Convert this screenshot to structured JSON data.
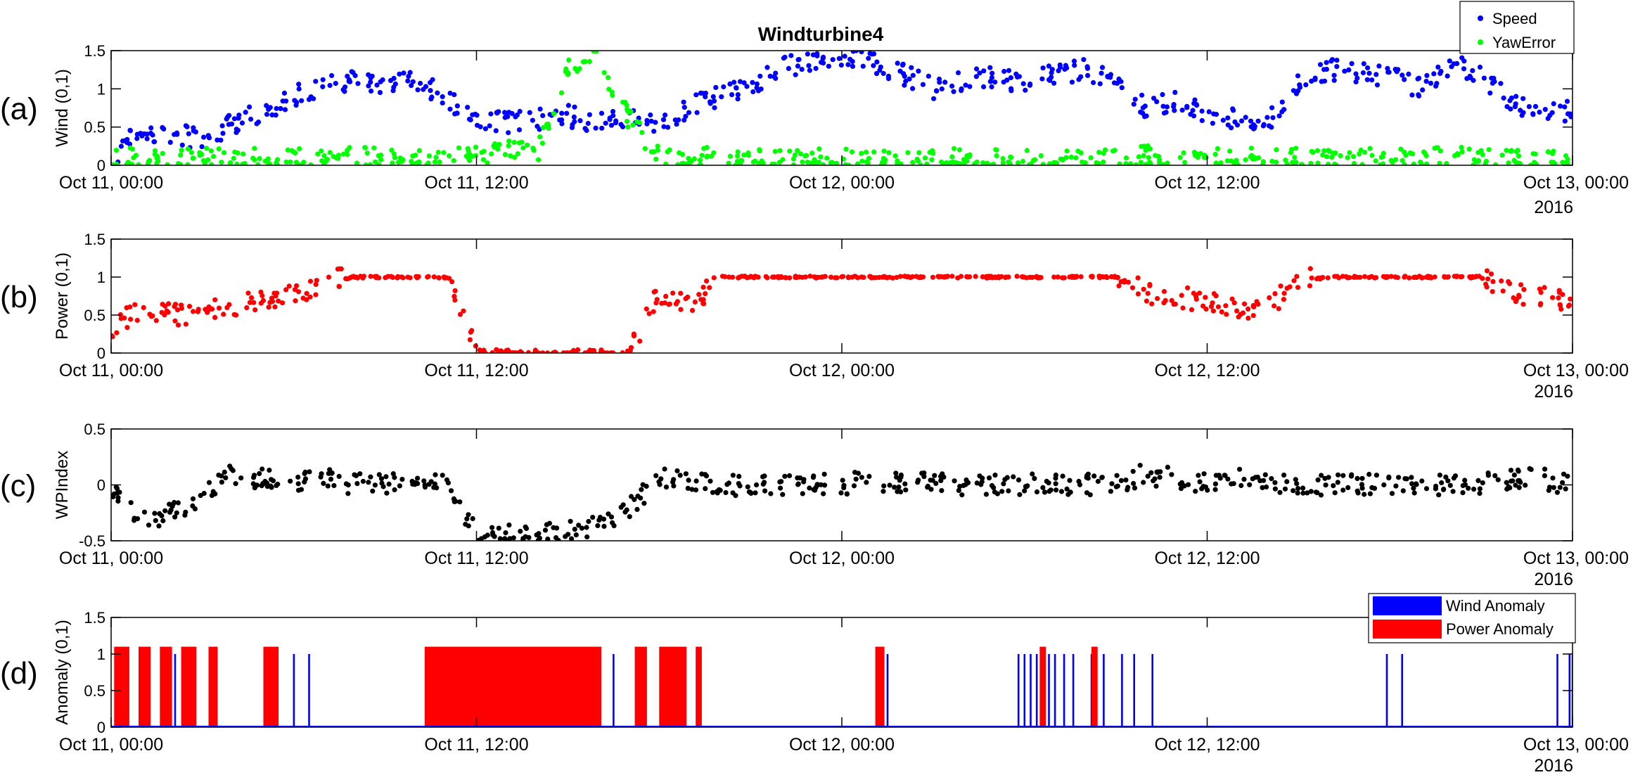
{
  "figure": {
    "panel_letters": [
      "(a)",
      "(b)",
      "(c)",
      "(d)"
    ],
    "year_label": "2016"
  },
  "chart_data": [
    {
      "type": "scatter",
      "panel": "(a)",
      "title": "Windturbine4",
      "ylabel": "Wind (0,1)",
      "ylim": [
        0,
        1.5
      ],
      "y_ticks": [
        "0",
        "0.5",
        "1",
        "1.5"
      ],
      "x_ticks": [
        "Oct 11, 00:00",
        "Oct 11, 12:00",
        "Oct 12, 00:00",
        "Oct 12, 12:00",
        "Oct 13, 00:00"
      ],
      "xlim_hours": [
        0,
        48
      ],
      "grid": false,
      "legend_position": "top-right",
      "series": [
        {
          "name": "Speed",
          "color": "#0000ff",
          "x": [
            0,
            1,
            2,
            3,
            4,
            5,
            6,
            7,
            8,
            9,
            10,
            11,
            12,
            13,
            14,
            15,
            16,
            17,
            18,
            19,
            20,
            21,
            22,
            23,
            24,
            25,
            26,
            27,
            28,
            29,
            30,
            31,
            32,
            33,
            34,
            35,
            36,
            37,
            38,
            39,
            40,
            41,
            42,
            43,
            44,
            45,
            46,
            47,
            48
          ],
          "y": [
            0.1,
            0.45,
            0.4,
            0.35,
            0.55,
            0.7,
            0.9,
            1.05,
            1.1,
            1.0,
            1.15,
            0.85,
            0.6,
            0.55,
            0.6,
            0.65,
            0.55,
            0.6,
            0.5,
            0.75,
            0.9,
            1.0,
            1.3,
            1.35,
            1.4,
            1.35,
            1.2,
            1.0,
            1.1,
            1.15,
            1.05,
            1.2,
            1.25,
            1.15,
            0.75,
            0.85,
            0.7,
            0.6,
            0.55,
            1.1,
            1.25,
            1.2,
            1.15,
            1.0,
            1.3,
            1.2,
            0.8,
            0.75,
            0.7
          ]
        },
        {
          "name": "YawError",
          "color": "#00ff00",
          "x": [
            0,
            1,
            2,
            3,
            4,
            5,
            6,
            7,
            8,
            9,
            10,
            11,
            12,
            13,
            14,
            15,
            16,
            17,
            18,
            19,
            20,
            21,
            22,
            23,
            24,
            25,
            26,
            27,
            28,
            29,
            30,
            31,
            32,
            33,
            34,
            35,
            36,
            37,
            38,
            39,
            40,
            41,
            42,
            43,
            44,
            45,
            46,
            47,
            48
          ],
          "y": [
            0.1,
            0.08,
            0.07,
            0.1,
            0.06,
            0.09,
            0.08,
            0.07,
            0.1,
            0.08,
            0.06,
            0.1,
            0.15,
            0.2,
            0.15,
            1.3,
            1.4,
            0.6,
            0.1,
            0.08,
            0.1,
            0.06,
            0.07,
            0.08,
            0.1,
            0.07,
            0.08,
            0.06,
            0.1,
            0.08,
            0.07,
            0.09,
            0.08,
            0.1,
            0.12,
            0.1,
            0.08,
            0.07,
            0.1,
            0.09,
            0.08,
            0.1,
            0.07,
            0.08,
            0.1,
            0.08,
            0.09,
            0.07,
            0.1
          ]
        }
      ]
    },
    {
      "type": "scatter",
      "panel": "(b)",
      "ylabel": "Power (0,1)",
      "ylim": [
        0,
        1.5
      ],
      "y_ticks": [
        "0",
        "0.5",
        "1",
        "1.5"
      ],
      "x_ticks": [
        "Oct 11, 00:00",
        "Oct 11, 12:00",
        "Oct 12, 00:00",
        "Oct 12, 12:00",
        "Oct 13, 00:00"
      ],
      "xlim_hours": [
        0,
        48
      ],
      "grid": false,
      "series": [
        {
          "name": "",
          "color": "#ff0000",
          "x": [
            0,
            1,
            2,
            3,
            4,
            5,
            6,
            7,
            8,
            9,
            10,
            11,
            12,
            13,
            14,
            15,
            16,
            17,
            18,
            19,
            20,
            21,
            22,
            23,
            24,
            25,
            26,
            27,
            28,
            29,
            30,
            31,
            32,
            33,
            34,
            35,
            36,
            37,
            38,
            39,
            40,
            41,
            42,
            43,
            44,
            45,
            46,
            47,
            48
          ],
          "y": [
            0.3,
            0.6,
            0.5,
            0.55,
            0.6,
            0.7,
            0.75,
            0.95,
            1.0,
            1.0,
            1.0,
            1.0,
            0.0,
            0.0,
            0.0,
            0.0,
            0.0,
            0.0,
            0.8,
            0.6,
            1.0,
            1.0,
            1.0,
            1.0,
            1.0,
            1.0,
            1.0,
            1.0,
            1.0,
            1.0,
            1.0,
            1.0,
            1.0,
            1.0,
            0.8,
            0.75,
            0.65,
            0.6,
            0.6,
            0.95,
            1.0,
            1.0,
            1.0,
            1.0,
            1.0,
            1.0,
            0.8,
            0.75,
            0.65
          ]
        }
      ]
    },
    {
      "type": "scatter",
      "panel": "(c)",
      "ylabel": "WPIndex",
      "ylim": [
        -0.5,
        0.5
      ],
      "y_ticks": [
        "-0.5",
        "0",
        "0.5"
      ],
      "x_ticks": [
        "Oct 11, 00:00",
        "Oct 11, 12:00",
        "Oct 12, 00:00",
        "Oct 12, 12:00",
        "Oct 13, 00:00"
      ],
      "xlim_hours": [
        0,
        48
      ],
      "grid": false,
      "series": [
        {
          "name": "",
          "color": "#000000",
          "x": [
            0,
            1,
            2,
            3,
            4,
            5,
            6,
            7,
            8,
            9,
            10,
            11,
            12,
            13,
            14,
            15,
            16,
            17,
            18,
            19,
            20,
            21,
            22,
            23,
            24,
            25,
            26,
            27,
            28,
            29,
            30,
            31,
            32,
            33,
            34,
            35,
            36,
            37,
            38,
            39,
            40,
            41,
            42,
            43,
            44,
            45,
            46,
            47,
            48
          ],
          "y": [
            0.0,
            -0.3,
            -0.25,
            -0.1,
            0.1,
            0.05,
            0.0,
            0.05,
            0.0,
            0.02,
            0.05,
            0.02,
            -0.45,
            -0.45,
            -0.45,
            -0.42,
            -0.35,
            -0.2,
            0.05,
            0.05,
            0.0,
            0.0,
            0.0,
            0.0,
            0.0,
            0.05,
            0.0,
            0.02,
            0.0,
            0.0,
            0.01,
            0.0,
            0.0,
            0.0,
            0.1,
            0.05,
            0.0,
            0.05,
            0.02,
            0.0,
            0.0,
            0.0,
            0.0,
            0.0,
            0.0,
            0.0,
            0.05,
            0.05,
            0.0
          ]
        }
      ]
    },
    {
      "type": "bar",
      "panel": "(d)",
      "ylabel": "Anomaly (0,1)",
      "ylim": [
        0,
        1.5
      ],
      "y_ticks": [
        "0",
        "0.5",
        "1",
        "1.5"
      ],
      "x_ticks": [
        "Oct 11, 00:00",
        "Oct 11, 12:00",
        "Oct 12, 00:00",
        "Oct 12, 12:00",
        "Oct 13, 00:00"
      ],
      "xlim_hours": [
        0,
        48
      ],
      "grid": false,
      "legend_position": "top-right",
      "series": [
        {
          "name": "Wind Anomaly",
          "color": "#0000ff",
          "spikes_hours": [
            2.1,
            6.0,
            6.5,
            14.3,
            14.6,
            16.5,
            17.3,
            25.5,
            29.8,
            30.0,
            30.2,
            30.4,
            30.6,
            30.8,
            31.0,
            31.3,
            31.6,
            32.2,
            32.6,
            33.2,
            33.6,
            34.2,
            41.9,
            42.4,
            47.5,
            47.9,
            48.0
          ],
          "level": 1.0
        },
        {
          "name": "Power Anomaly",
          "color": "#ff0000",
          "blocks_hours": [
            [
              0.1,
              0.6
            ],
            [
              0.9,
              1.3
            ],
            [
              1.6,
              2.0
            ],
            [
              2.3,
              2.8
            ],
            [
              3.2,
              3.5
            ],
            [
              5.0,
              5.5
            ],
            [
              10.3,
              16.1
            ],
            [
              17.2,
              17.6
            ],
            [
              18.0,
              18.9
            ],
            [
              19.2,
              19.4
            ],
            [
              25.1,
              25.4
            ],
            [
              30.5,
              30.7
            ],
            [
              32.2,
              32.4
            ]
          ],
          "level": 1.1
        }
      ]
    }
  ]
}
